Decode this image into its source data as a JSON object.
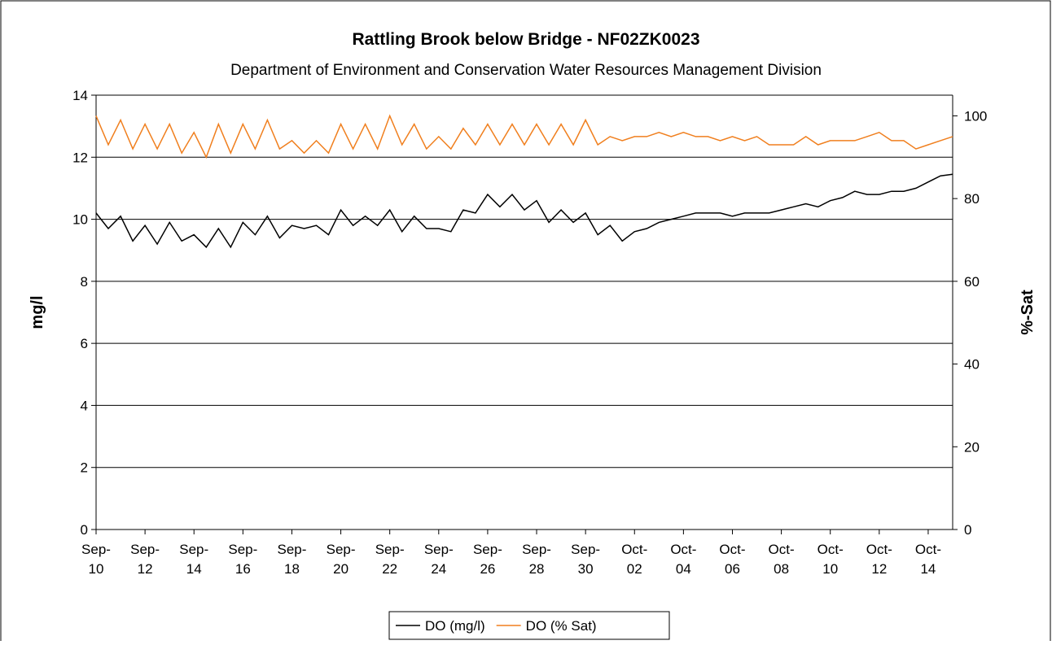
{
  "chart_data": {
    "type": "line",
    "title": "Rattling Brook below Bridge - NF02ZK0023",
    "subtitle": "Department of Environment and Conservation Water Resources Management Division",
    "y_label": "mg/l",
    "y2_label": "%-Sat",
    "x": [
      0,
      0.5,
      1,
      1.5,
      2,
      2.5,
      3,
      3.5,
      4,
      4.5,
      5,
      5.5,
      6,
      6.5,
      7,
      7.5,
      8,
      8.5,
      9,
      9.5,
      10,
      10.5,
      11,
      11.5,
      12,
      12.5,
      13,
      13.5,
      14,
      14.5,
      15,
      15.5,
      16,
      16.5,
      17,
      17.5,
      18,
      18.5,
      19,
      19.5,
      20,
      20.5,
      21,
      21.5,
      22,
      22.5,
      23,
      23.5,
      24,
      24.5,
      25,
      25.5,
      26,
      26.5,
      27,
      27.5,
      28,
      28.5,
      29,
      29.5,
      30,
      30.5,
      31,
      31.5,
      32,
      32.5,
      33,
      33.5,
      34,
      34.5,
      35
    ],
    "xlim": [
      0,
      35
    ],
    "xticks": [
      {
        "value": 0,
        "label": "Sep-10"
      },
      {
        "value": 2,
        "label": "Sep-12"
      },
      {
        "value": 4,
        "label": "Sep-14"
      },
      {
        "value": 6,
        "label": "Sep-16"
      },
      {
        "value": 8,
        "label": "Sep-18"
      },
      {
        "value": 10,
        "label": "Sep-20"
      },
      {
        "value": 12,
        "label": "Sep-22"
      },
      {
        "value": 14,
        "label": "Sep-24"
      },
      {
        "value": 16,
        "label": "Sep-26"
      },
      {
        "value": 18,
        "label": "Sep-28"
      },
      {
        "value": 20,
        "label": "Sep-30"
      },
      {
        "value": 22,
        "label": "Oct-02"
      },
      {
        "value": 24,
        "label": "Oct-04"
      },
      {
        "value": 26,
        "label": "Oct-06"
      },
      {
        "value": 28,
        "label": "Oct-08"
      },
      {
        "value": 30,
        "label": "Oct-10"
      },
      {
        "value": 32,
        "label": "Oct-12"
      },
      {
        "value": 34,
        "label": "Oct-14"
      }
    ],
    "ylim": [
      0,
      14
    ],
    "yticks": [
      0,
      2,
      4,
      6,
      8,
      10,
      12,
      14
    ],
    "y2lim": [
      0,
      105
    ],
    "y2ticks": [
      0,
      20,
      40,
      60,
      80,
      100
    ],
    "grid": true,
    "legend": "bottom",
    "series": [
      {
        "name": "DO (mg/l)",
        "color": "#000000",
        "values": [
          10.2,
          9.7,
          10.1,
          9.3,
          9.8,
          9.2,
          9.9,
          9.3,
          9.5,
          9.1,
          9.7,
          9.1,
          9.9,
          9.5,
          10.1,
          9.4,
          9.8,
          9.7,
          9.8,
          9.5,
          10.3,
          9.8,
          10.1,
          9.8,
          10.3,
          9.6,
          10.1,
          9.7,
          9.7,
          9.6,
          10.3,
          10.2,
          10.8,
          10.4,
          10.8,
          10.3,
          10.6,
          9.9,
          10.3,
          9.9,
          10.2,
          9.5,
          9.8,
          9.3,
          9.6,
          9.7,
          9.9,
          10.0,
          10.1,
          10.2,
          10.2,
          10.2,
          10.1,
          10.2,
          10.2,
          10.2,
          10.3,
          10.4,
          10.5,
          10.4,
          10.6,
          10.7,
          10.9,
          10.8,
          10.8,
          10.9,
          10.9,
          11.0,
          11.2,
          11.4,
          11.45
        ]
      },
      {
        "name": "DO (% Sat)",
        "color": "#f07f1e",
        "axis": "y2",
        "values": [
          100,
          93,
          99,
          92,
          98,
          92,
          98,
          91,
          96,
          90,
          98,
          91,
          98,
          92,
          99,
          92,
          94,
          91,
          94,
          91,
          98,
          92,
          98,
          92,
          100,
          93,
          98,
          92,
          95,
          92,
          97,
          93,
          98,
          93,
          98,
          93,
          98,
          93,
          98,
          93,
          99,
          93,
          95,
          94,
          95,
          95,
          96,
          95,
          96,
          95,
          95,
          94,
          95,
          94,
          95,
          93,
          93,
          93,
          95,
          93,
          94,
          94,
          94,
          95,
          96,
          94,
          94,
          92,
          93,
          94,
          95
        ]
      }
    ]
  }
}
